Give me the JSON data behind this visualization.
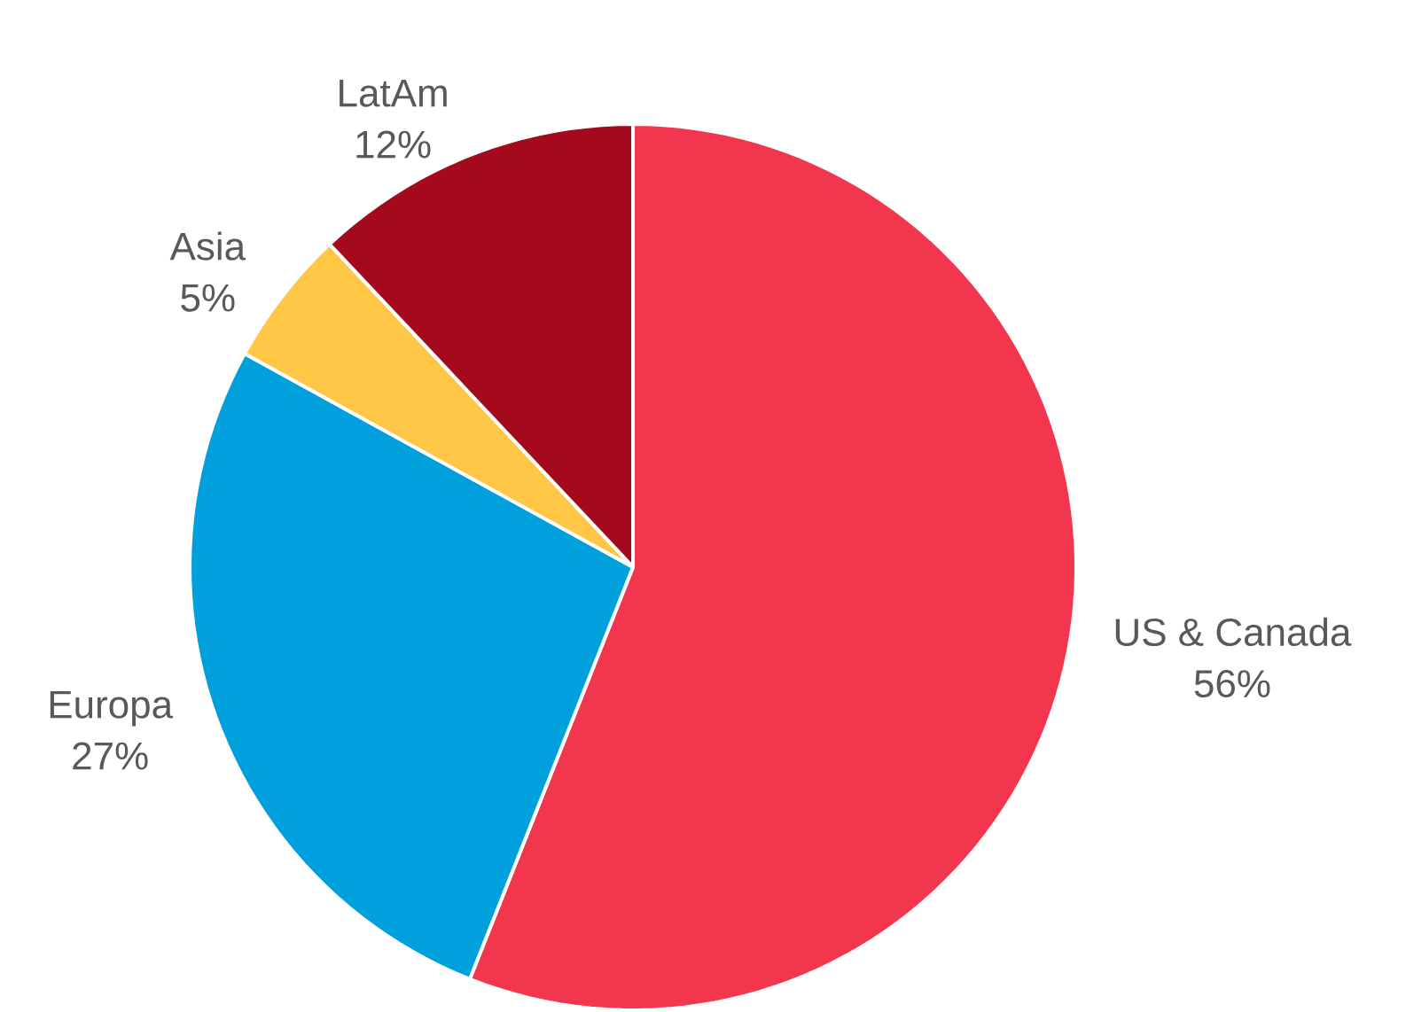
{
  "chart_data": {
    "type": "pie",
    "categories": [
      "US & Canada",
      "Europa",
      "Asia",
      "LatAm"
    ],
    "values": [
      56,
      27,
      5,
      12
    ],
    "value_labels": [
      "56%",
      "27%",
      "5%",
      "12%"
    ],
    "colors": [
      "#f2364d",
      "#00a0dd",
      "#ffc745",
      "#a50a1c"
    ]
  }
}
